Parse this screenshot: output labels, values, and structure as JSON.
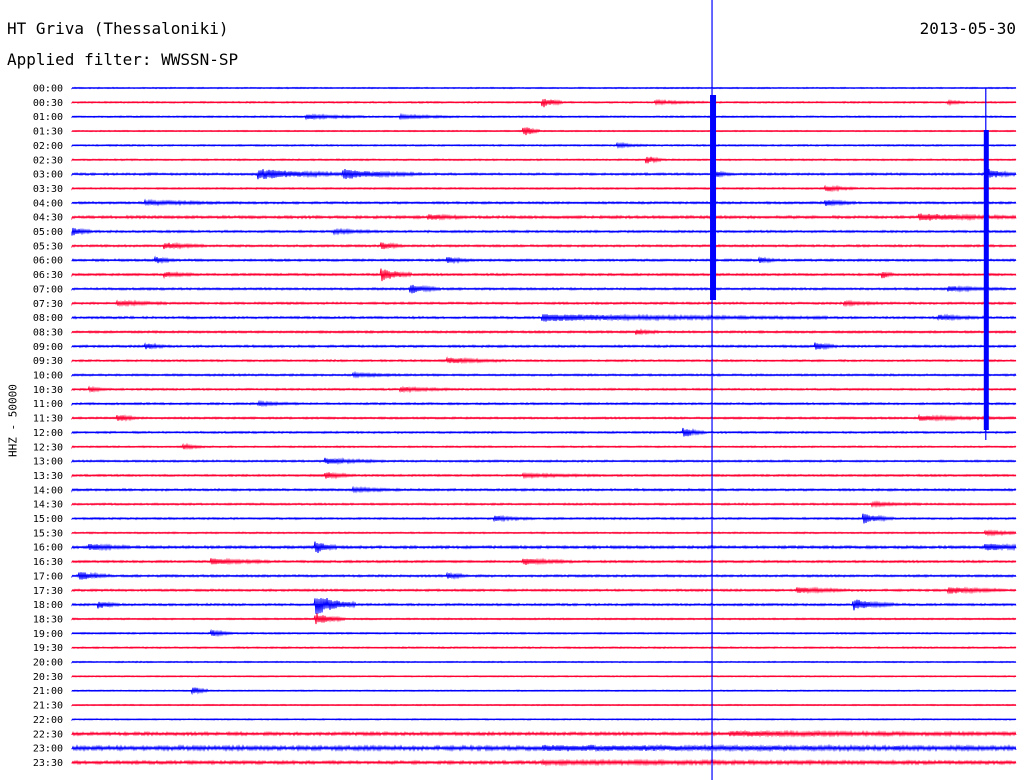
{
  "header": {
    "station": "HT Griva (Thessaloniki)",
    "filter": "Applied filter: WWSSN-SP",
    "date": "2013-05-30",
    "channel": "HHZ - 50000"
  },
  "colors": {
    "blue": "#0000ff",
    "red": "#ff0033"
  },
  "chart_data": {
    "type": "line",
    "title": "HT Griva (Thessaloniki)",
    "ylabel": "HHZ - 50000",
    "y_tick_labels": [
      "00:00",
      "00:30",
      "01:00",
      "01:30",
      "02:00",
      "02:30",
      "03:00",
      "03:30",
      "04:00",
      "04:30",
      "05:00",
      "05:30",
      "06:00",
      "06:30",
      "07:00",
      "07:30",
      "08:00",
      "08:30",
      "09:00",
      "09:30",
      "10:00",
      "10:30",
      "11:00",
      "11:30",
      "12:00",
      "12:30",
      "13:00",
      "13:30",
      "14:00",
      "14:30",
      "15:00",
      "15:30",
      "16:00",
      "16:30",
      "17:00",
      "17:30",
      "18:00",
      "18:30",
      "19:00",
      "19:30",
      "20:00",
      "20:30",
      "21:00",
      "21:30",
      "22:00",
      "22:30",
      "23:00",
      "23:30"
    ],
    "row_colors": "alternating blue/red",
    "grid": false,
    "legend": "none",
    "traces": [
      {
        "row": 0,
        "noise": 1.2,
        "events": []
      },
      {
        "row": 1,
        "noise": 1.5,
        "events": [
          {
            "x": 0.5,
            "amp": 9,
            "dur": 0.02
          },
          {
            "x": 0.62,
            "amp": 3,
            "dur": 0.05
          },
          {
            "x": 0.93,
            "amp": 3,
            "dur": 0.02
          }
        ]
      },
      {
        "row": 2,
        "noise": 1.5,
        "events": [
          {
            "x": 0.25,
            "amp": 4,
            "dur": 0.06
          },
          {
            "x": 0.35,
            "amp": 3,
            "dur": 0.06
          }
        ]
      },
      {
        "row": 3,
        "noise": 1.2,
        "events": [
          {
            "x": 0.48,
            "amp": 10,
            "dur": 0.015
          }
        ]
      },
      {
        "row": 4,
        "noise": 1.5,
        "events": [
          {
            "x": 0.58,
            "amp": 3,
            "dur": 0.03
          }
        ]
      },
      {
        "row": 5,
        "noise": 1.5,
        "events": [
          {
            "x": 0.61,
            "amp": 8,
            "dur": 0.015
          }
        ]
      },
      {
        "row": 6,
        "noise": 2,
        "events": [
          {
            "x": 0.2,
            "amp": 9,
            "dur": 0.1
          },
          {
            "x": 0.29,
            "amp": 8,
            "dur": 0.08
          },
          {
            "x": 0.68,
            "amp": 6,
            "dur": 0.02
          },
          {
            "x": 0.97,
            "amp": 9,
            "dur": 0.03
          }
        ]
      },
      {
        "row": 7,
        "noise": 1.5,
        "events": [
          {
            "x": 0.8,
            "amp": 5,
            "dur": 0.03
          }
        ]
      },
      {
        "row": 8,
        "noise": 2,
        "events": [
          {
            "x": 0.8,
            "amp": 5,
            "dur": 0.03
          },
          {
            "x": 0.08,
            "amp": 3,
            "dur": 0.1
          }
        ]
      },
      {
        "row": 9,
        "noise": 2.5,
        "events": [
          {
            "x": 0.9,
            "amp": 6,
            "dur": 0.1
          },
          {
            "x": 0.38,
            "amp": 4,
            "dur": 0.04
          }
        ]
      },
      {
        "row": 10,
        "noise": 2,
        "events": [
          {
            "x": 0.0,
            "amp": 8,
            "dur": 0.02
          },
          {
            "x": 0.28,
            "amp": 3,
            "dur": 0.05
          }
        ]
      },
      {
        "row": 11,
        "noise": 2,
        "events": [
          {
            "x": 0.1,
            "amp": 5,
            "dur": 0.04
          },
          {
            "x": 0.33,
            "amp": 6,
            "dur": 0.02
          }
        ]
      },
      {
        "row": 12,
        "noise": 2,
        "events": [
          {
            "x": 0.09,
            "amp": 5,
            "dur": 0.02
          },
          {
            "x": 0.4,
            "amp": 5,
            "dur": 0.02
          },
          {
            "x": 0.73,
            "amp": 4,
            "dur": 0.02
          }
        ]
      },
      {
        "row": 13,
        "noise": 2,
        "events": [
          {
            "x": 0.33,
            "amp": 12,
            "dur": 0.03
          },
          {
            "x": 0.1,
            "amp": 4,
            "dur": 0.03
          },
          {
            "x": 0.86,
            "amp": 6,
            "dur": 0.01
          }
        ]
      },
      {
        "row": 14,
        "noise": 2,
        "events": [
          {
            "x": 0.36,
            "amp": 9,
            "dur": 0.03
          },
          {
            "x": 0.93,
            "amp": 4,
            "dur": 0.06
          }
        ]
      },
      {
        "row": 15,
        "noise": 2,
        "events": [
          {
            "x": 0.05,
            "amp": 4,
            "dur": 0.05
          },
          {
            "x": 0.82,
            "amp": 3,
            "dur": 0.04
          }
        ]
      },
      {
        "row": 16,
        "noise": 2,
        "events": [
          {
            "x": 0.5,
            "amp": 6,
            "dur": 0.3
          },
          {
            "x": 0.92,
            "amp": 4,
            "dur": 0.05
          }
        ]
      },
      {
        "row": 17,
        "noise": 2,
        "events": [
          {
            "x": 0.6,
            "amp": 4,
            "dur": 0.02
          }
        ]
      },
      {
        "row": 18,
        "noise": 2,
        "events": [
          {
            "x": 0.08,
            "amp": 4,
            "dur": 0.02
          },
          {
            "x": 0.79,
            "amp": 6,
            "dur": 0.02
          }
        ]
      },
      {
        "row": 19,
        "noise": 1.8,
        "events": [
          {
            "x": 0.4,
            "amp": 5,
            "dur": 0.06
          }
        ]
      },
      {
        "row": 20,
        "noise": 1.8,
        "events": [
          {
            "x": 0.3,
            "amp": 3,
            "dur": 0.05
          }
        ]
      },
      {
        "row": 21,
        "noise": 1.8,
        "events": [
          {
            "x": 0.35,
            "amp": 4,
            "dur": 0.05
          },
          {
            "x": 0.02,
            "amp": 4,
            "dur": 0.02
          }
        ]
      },
      {
        "row": 22,
        "noise": 1.8,
        "events": [
          {
            "x": 0.2,
            "amp": 3,
            "dur": 0.04
          }
        ]
      },
      {
        "row": 23,
        "noise": 1.8,
        "events": [
          {
            "x": 0.05,
            "amp": 6,
            "dur": 0.02
          },
          {
            "x": 0.9,
            "amp": 4,
            "dur": 0.1
          }
        ]
      },
      {
        "row": 24,
        "noise": 1.8,
        "events": [
          {
            "x": 0.65,
            "amp": 8,
            "dur": 0.02
          }
        ]
      },
      {
        "row": 25,
        "noise": 1.5,
        "events": [
          {
            "x": 0.12,
            "amp": 4,
            "dur": 0.02
          }
        ]
      },
      {
        "row": 26,
        "noise": 1.8,
        "events": [
          {
            "x": 0.27,
            "amp": 5,
            "dur": 0.06
          }
        ]
      },
      {
        "row": 27,
        "noise": 1.8,
        "events": [
          {
            "x": 0.27,
            "amp": 5,
            "dur": 0.03
          },
          {
            "x": 0.48,
            "amp": 3,
            "dur": 0.08
          }
        ]
      },
      {
        "row": 28,
        "noise": 2,
        "events": [
          {
            "x": 0.3,
            "amp": 3,
            "dur": 0.05
          }
        ]
      },
      {
        "row": 29,
        "noise": 1.8,
        "events": [
          {
            "x": 0.85,
            "amp": 3,
            "dur": 0.05
          }
        ]
      },
      {
        "row": 30,
        "noise": 1.8,
        "events": [
          {
            "x": 0.84,
            "amp": 9,
            "dur": 0.03
          },
          {
            "x": 0.45,
            "amp": 4,
            "dur": 0.04
          }
        ]
      },
      {
        "row": 31,
        "noise": 1.5,
        "events": [
          {
            "x": 0.97,
            "amp": 4,
            "dur": 0.05
          }
        ]
      },
      {
        "row": 32,
        "noise": 2.5,
        "events": [
          {
            "x": 0.02,
            "amp": 5,
            "dur": 0.04
          },
          {
            "x": 0.26,
            "amp": 10,
            "dur": 0.02
          },
          {
            "x": 0.97,
            "amp": 6,
            "dur": 0.05
          }
        ]
      },
      {
        "row": 33,
        "noise": 2,
        "events": [
          {
            "x": 0.15,
            "amp": 5,
            "dur": 0.06
          },
          {
            "x": 0.48,
            "amp": 5,
            "dur": 0.05
          }
        ]
      },
      {
        "row": 34,
        "noise": 2,
        "events": [
          {
            "x": 0.01,
            "amp": 7,
            "dur": 0.03
          },
          {
            "x": 0.4,
            "amp": 5,
            "dur": 0.02
          }
        ]
      },
      {
        "row": 35,
        "noise": 2,
        "events": [
          {
            "x": 0.77,
            "amp": 5,
            "dur": 0.05
          },
          {
            "x": 0.93,
            "amp": 6,
            "dur": 0.06
          }
        ]
      },
      {
        "row": 36,
        "noise": 2,
        "events": [
          {
            "x": 0.26,
            "amp": 20,
            "dur": 0.04
          },
          {
            "x": 0.03,
            "amp": 6,
            "dur": 0.02
          },
          {
            "x": 0.83,
            "amp": 10,
            "dur": 0.04
          }
        ]
      },
      {
        "row": 37,
        "noise": 1.5,
        "events": [
          {
            "x": 0.26,
            "amp": 10,
            "dur": 0.03
          }
        ]
      },
      {
        "row": 38,
        "noise": 1.5,
        "events": [
          {
            "x": 0.15,
            "amp": 5,
            "dur": 0.02
          }
        ]
      },
      {
        "row": 39,
        "noise": 1.5,
        "events": []
      },
      {
        "row": 40,
        "noise": 1.2,
        "events": []
      },
      {
        "row": 41,
        "noise": 1.2,
        "events": []
      },
      {
        "row": 42,
        "noise": 1.2,
        "events": [
          {
            "x": 0.13,
            "amp": 7,
            "dur": 0.015
          }
        ]
      },
      {
        "row": 43,
        "noise": 1.2,
        "events": []
      },
      {
        "row": 44,
        "noise": 1.2,
        "events": []
      },
      {
        "row": 45,
        "noise": 3,
        "events": [
          {
            "x": 0.7,
            "amp": 3,
            "dur": 0.3
          }
        ]
      },
      {
        "row": 46,
        "noise": 4,
        "events": [
          {
            "x": 0.5,
            "amp": 3,
            "dur": 0.5
          }
        ]
      },
      {
        "row": 47,
        "noise": 3,
        "events": [
          {
            "x": 0.5,
            "amp": 2,
            "dur": 0.5
          }
        ]
      }
    ],
    "vertical_events": [
      {
        "x": 0.678,
        "amp_rows": 13,
        "color": "blue"
      },
      {
        "x": 0.968,
        "amp_rows": 10,
        "color": "blue"
      }
    ]
  }
}
